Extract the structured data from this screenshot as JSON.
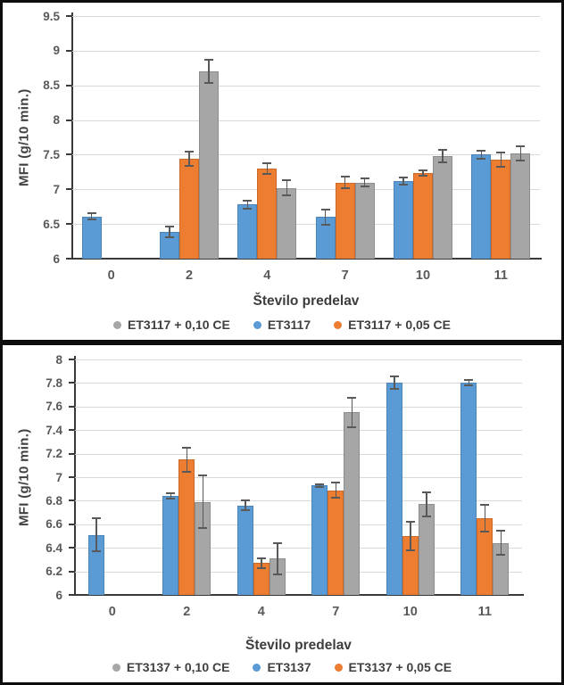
{
  "chart_data": [
    {
      "type": "bar",
      "title": "",
      "xlabel": "Število predelav",
      "ylabel": "MFI (g/10 min.)",
      "ylim": [
        6,
        9.5
      ],
      "grid": true,
      "legend_position": "bottom",
      "categories": [
        "0",
        "2",
        "4",
        "7",
        "10",
        "11"
      ],
      "yticks": [
        {
          "value": 6,
          "label": "6"
        },
        {
          "value": 6.5,
          "label": "6.5"
        },
        {
          "value": 7,
          "label": "7"
        },
        {
          "value": 7.5,
          "label": "7.5"
        },
        {
          "value": 8,
          "label": "8"
        },
        {
          "value": 8.5,
          "label": "8.5"
        },
        {
          "value": 9,
          "label": "9"
        },
        {
          "value": 9.5,
          "label": "9.5"
        }
      ],
      "series": [
        {
          "name": "ET3117",
          "color": "#5B9BD5",
          "values": [
            6.61,
            6.38,
            6.78,
            6.6,
            7.12,
            7.5
          ],
          "errors": [
            0.06,
            0.09,
            0.07,
            0.12,
            0.06,
            0.07
          ]
        },
        {
          "name": "ET3117 + 0,05 CE",
          "color": "#ED7D31",
          "values": [
            null,
            7.44,
            7.3,
            7.1,
            7.24,
            7.43
          ],
          "errors": [
            null,
            0.12,
            0.09,
            0.1,
            0.05,
            0.12
          ]
        },
        {
          "name": "ET3117 + 0,10 CE",
          "color": "#A6A6A6",
          "values": [
            null,
            8.7,
            7.02,
            7.1,
            7.48,
            7.52
          ],
          "errors": [
            null,
            0.18,
            0.12,
            0.07,
            0.1,
            0.12
          ]
        }
      ],
      "legend": [
        {
          "label": "ET3117 + 0,10 CE",
          "color": "#A6A6A6"
        },
        {
          "label": "ET3117",
          "color": "#5B9BD5"
        },
        {
          "label": "ET3117 + 0,05 CE",
          "color": "#ED7D31"
        }
      ]
    },
    {
      "type": "bar",
      "title": "",
      "xlabel": "Število predelav",
      "ylabel": "MFI (g/10 min.)",
      "ylim": [
        6,
        8
      ],
      "grid": true,
      "legend_position": "bottom",
      "categories": [
        "0",
        "2",
        "4",
        "7",
        "10",
        "11"
      ],
      "yticks": [
        {
          "value": 6,
          "label": "6"
        },
        {
          "value": 6.2,
          "label": "6.2"
        },
        {
          "value": 6.4,
          "label": "6.4"
        },
        {
          "value": 6.6,
          "label": "6.6"
        },
        {
          "value": 6.8,
          "label": "6.8"
        },
        {
          "value": 7,
          "label": "7"
        },
        {
          "value": 7.2,
          "label": "7.2"
        },
        {
          "value": 7.4,
          "label": "7.4"
        },
        {
          "value": 7.6,
          "label": "7.6"
        },
        {
          "value": 7.8,
          "label": "7.8"
        },
        {
          "value": 8,
          "label": "8"
        }
      ],
      "series": [
        {
          "name": "ET3137",
          "color": "#5B9BD5",
          "values": [
            6.51,
            6.84,
            6.76,
            6.93,
            7.8,
            7.8
          ],
          "errors": [
            0.15,
            0.03,
            0.05,
            0.02,
            0.06,
            0.03
          ]
        },
        {
          "name": "ET3137 + 0,05 CE",
          "color": "#ED7D31",
          "values": [
            null,
            7.15,
            6.27,
            6.89,
            6.5,
            6.65
          ],
          "errors": [
            null,
            0.11,
            0.05,
            0.07,
            0.13,
            0.12
          ]
        },
        {
          "name": "ET3137 + 0,10 CE",
          "color": "#A6A6A6",
          "values": [
            null,
            6.79,
            6.31,
            7.55,
            6.77,
            6.44
          ],
          "errors": [
            null,
            0.23,
            0.14,
            0.13,
            0.11,
            0.11
          ]
        }
      ],
      "legend": [
        {
          "label": "ET3137 + 0,10 CE",
          "color": "#A6A6A6"
        },
        {
          "label": "ET3137",
          "color": "#5B9BD5"
        },
        {
          "label": "ET3137 + 0,05 CE",
          "color": "#ED7D31"
        }
      ]
    }
  ]
}
